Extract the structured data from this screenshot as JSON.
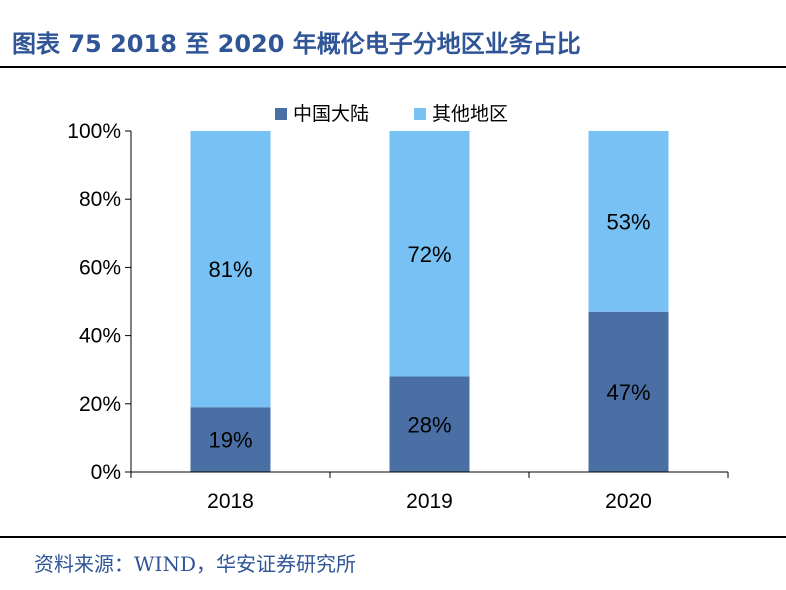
{
  "header": {
    "title": "图表 75 2018 至 2020 年概伦电子分地区业务占比"
  },
  "footer": {
    "source": "资料来源：WIND，华安证券研究所"
  },
  "colors": {
    "title_blue": "#2f5597",
    "series_mainland": "#4a6fa5",
    "series_other": "#77c1f4"
  },
  "chart_data": {
    "type": "bar",
    "stacked": true,
    "categories": [
      "2018",
      "2019",
      "2020"
    ],
    "series": [
      {
        "name": "中国大陆",
        "values": [
          19,
          28,
          47
        ],
        "labels": [
          "19%",
          "28%",
          "47%"
        ],
        "color": "#4a6fa5"
      },
      {
        "name": "其他地区",
        "values": [
          81,
          72,
          53
        ],
        "labels": [
          "81%",
          "72%",
          "53%"
        ],
        "color": "#77c1f4"
      }
    ],
    "ylim": [
      0,
      100
    ],
    "yticks": [
      "0%",
      "20%",
      "40%",
      "60%",
      "80%",
      "100%"
    ],
    "legend_position": "top-center",
    "grid": false
  }
}
